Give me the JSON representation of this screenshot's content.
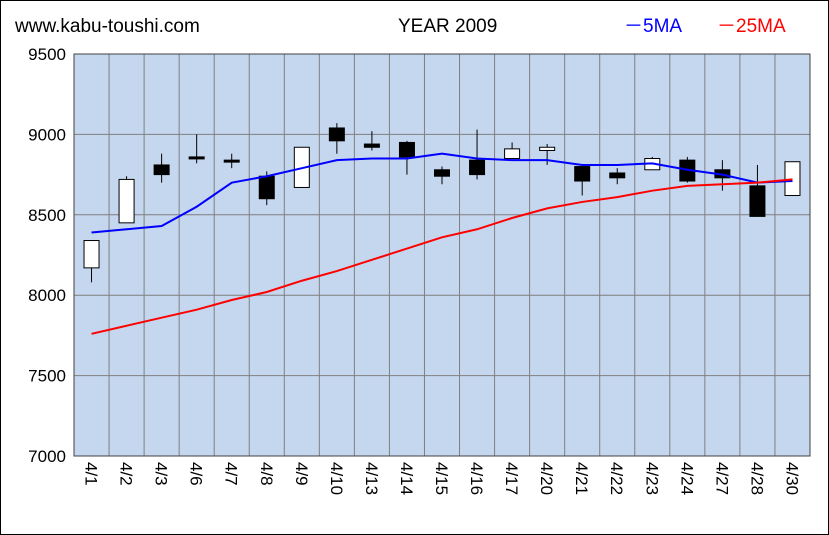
{
  "header": {
    "site": "www.kabu-toushi.com",
    "year": "YEAR 2009",
    "legend_5ma": "－5MA",
    "legend_25ma": "－25MA"
  },
  "colors": {
    "plot_bg": "#c5d7ef",
    "ma5": "#0000ff",
    "ma25": "#ff0000",
    "candle_up": "#ffffff",
    "candle_down": "#000000"
  },
  "chart_data": {
    "type": "candlestick",
    "title": "YEAR 2009",
    "ylim": [
      7000,
      9500
    ],
    "yticks": [
      7000,
      7500,
      8000,
      8500,
      9000,
      9500
    ],
    "grid": true,
    "legend_position": "top-right",
    "categories": [
      "4/1",
      "4/2",
      "4/3",
      "4/6",
      "4/7",
      "4/8",
      "4/9",
      "4/10",
      "4/13",
      "4/14",
      "4/15",
      "4/16",
      "4/17",
      "4/20",
      "4/21",
      "4/22",
      "4/23",
      "4/24",
      "4/27",
      "4/28",
      "4/30"
    ],
    "candles": [
      {
        "open": 8170,
        "high": 8340,
        "low": 8080,
        "close": 8340
      },
      {
        "open": 8450,
        "high": 8740,
        "low": 8450,
        "close": 8720
      },
      {
        "open": 8810,
        "high": 8880,
        "low": 8700,
        "close": 8750
      },
      {
        "open": 8860,
        "high": 9000,
        "low": 8820,
        "close": 8850
      },
      {
        "open": 8840,
        "high": 8880,
        "low": 8790,
        "close": 8830
      },
      {
        "open": 8740,
        "high": 8770,
        "low": 8560,
        "close": 8600
      },
      {
        "open": 8670,
        "high": 8920,
        "low": 8670,
        "close": 8920
      },
      {
        "open": 9040,
        "high": 9070,
        "low": 8880,
        "close": 8960
      },
      {
        "open": 8940,
        "high": 9020,
        "low": 8900,
        "close": 8920
      },
      {
        "open": 8950,
        "high": 8960,
        "low": 8750,
        "close": 8860
      },
      {
        "open": 8780,
        "high": 8800,
        "low": 8690,
        "close": 8740
      },
      {
        "open": 8840,
        "high": 9030,
        "low": 8720,
        "close": 8750
      },
      {
        "open": 8850,
        "high": 8950,
        "low": 8850,
        "close": 8910
      },
      {
        "open": 8900,
        "high": 8940,
        "low": 8810,
        "close": 8920
      },
      {
        "open": 8800,
        "high": 8800,
        "low": 8620,
        "close": 8710
      },
      {
        "open": 8760,
        "high": 8790,
        "low": 8690,
        "close": 8730
      },
      {
        "open": 8780,
        "high": 8860,
        "low": 8780,
        "close": 8850
      },
      {
        "open": 8840,
        "high": 8860,
        "low": 8700,
        "close": 8710
      },
      {
        "open": 8780,
        "high": 8840,
        "low": 8650,
        "close": 8730
      },
      {
        "open": 8680,
        "high": 8810,
        "low": 8490,
        "close": 8490
      },
      {
        "open": 8620,
        "high": 8830,
        "low": 8620,
        "close": 8830
      }
    ],
    "series": [
      {
        "name": "5MA",
        "color": "#0000ff",
        "values": [
          8390,
          8410,
          8430,
          8550,
          8700,
          8740,
          8790,
          8840,
          8850,
          8850,
          8880,
          8850,
          8840,
          8840,
          8810,
          8810,
          8820,
          8780,
          8750,
          8700,
          8710
        ]
      },
      {
        "name": "25MA",
        "color": "#ff0000",
        "values": [
          7760,
          7810,
          7860,
          7910,
          7970,
          8020,
          8090,
          8150,
          8220,
          8290,
          8360,
          8410,
          8480,
          8540,
          8580,
          8610,
          8650,
          8680,
          8690,
          8700,
          8720
        ]
      }
    ]
  }
}
